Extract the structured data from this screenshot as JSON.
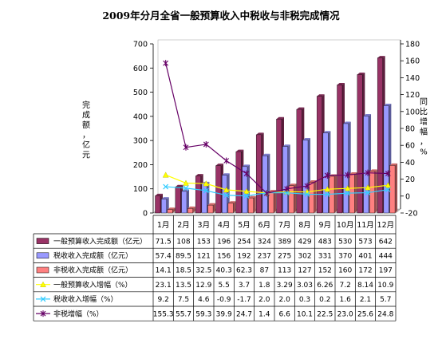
{
  "chart_data": {
    "type": "bar",
    "title": "2009年分月全省一般预算收入中税收与非税完成情况",
    "ylabel_left": "完成额，亿元",
    "ylabel_right": "同比增幅，%",
    "ylim_left": [
      0,
      700
    ],
    "yticks_left": [
      "0",
      "100",
      "200",
      "300",
      "400",
      "500",
      "600",
      "700"
    ],
    "ylim_right": [
      -20,
      180
    ],
    "yticks_right": [
      "-20",
      "0",
      "20",
      "40",
      "60",
      "80",
      "100",
      "120",
      "140",
      "160",
      "180"
    ],
    "categories": [
      "1月",
      "2月",
      "3月",
      "4月",
      "5月",
      "6月",
      "7月",
      "8月",
      "9月",
      "10月",
      "11月",
      "12月"
    ],
    "bar_series": [
      {
        "name": "一般预算收入完成额（亿元）",
        "color": "#993366",
        "labels": [
          "71.5",
          "108",
          "153",
          "196",
          "254",
          "324",
          "389",
          "429",
          "483",
          "530",
          "573",
          "642"
        ],
        "values": [
          71.5,
          108,
          153,
          196,
          254,
          324,
          389,
          429,
          483,
          530,
          573,
          642
        ]
      },
      {
        "name": "税收收入完成额（亿元）",
        "color": "#9999ff",
        "labels": [
          "57.4",
          "89.5",
          "121",
          "156",
          "192",
          "237",
          "275",
          "302",
          "331",
          "370",
          "401",
          "444"
        ],
        "values": [
          57.4,
          89.5,
          121,
          156,
          192,
          237,
          275,
          302,
          331,
          370,
          401,
          444
        ]
      },
      {
        "name": "非税收入完成额（亿元）",
        "color": "#ff8080",
        "labels": [
          "14.1",
          "18.5",
          "32.5",
          "40.3",
          "62.3",
          "87",
          "113",
          "127",
          "152",
          "160",
          "172",
          "197"
        ],
        "values": [
          14.1,
          18.5,
          32.5,
          40.3,
          62.3,
          87,
          113,
          127,
          152,
          160,
          172,
          197
        ]
      }
    ],
    "line_series": [
      {
        "name": "一般预算收入增幅（%）",
        "color": "#ffff00",
        "marker": "triangle",
        "labels": [
          "23.1",
          "13.5",
          "12.9",
          "5.5",
          "3.7",
          "1.8",
          "3.29",
          "3.03",
          "6.26",
          "7.2",
          "8.14",
          "10.9"
        ],
        "values": [
          23.1,
          13.5,
          12.9,
          5.5,
          3.7,
          1.8,
          3.29,
          3.03,
          6.26,
          7.2,
          8.14,
          10.9
        ]
      },
      {
        "name": "税收收入增幅（%）",
        "color": "#33ccff",
        "marker": "x",
        "labels": [
          "9.2",
          "7.5",
          "4.6",
          "-0.9",
          "-1.7",
          "2.0",
          "2.0",
          "0.3",
          "0.2",
          "1.6",
          "2.1",
          "5.7"
        ],
        "values": [
          9.2,
          7.5,
          4.6,
          -0.9,
          -1.7,
          2.0,
          2.0,
          0.3,
          0.2,
          1.6,
          2.1,
          5.7
        ]
      },
      {
        "name": "非税增幅（%）",
        "color": "#660066",
        "marker": "star",
        "labels": [
          "155.3",
          "55.7",
          "59.3",
          "39.9",
          "24.7",
          "1.4",
          "6.6",
          "10.1",
          "22.5",
          "23.0",
          "25.6",
          "24.8"
        ],
        "values": [
          155.3,
          55.7,
          59.3,
          39.9,
          24.7,
          1.4,
          6.6,
          10.1,
          22.5,
          23.0,
          25.6,
          24.8
        ]
      }
    ]
  }
}
